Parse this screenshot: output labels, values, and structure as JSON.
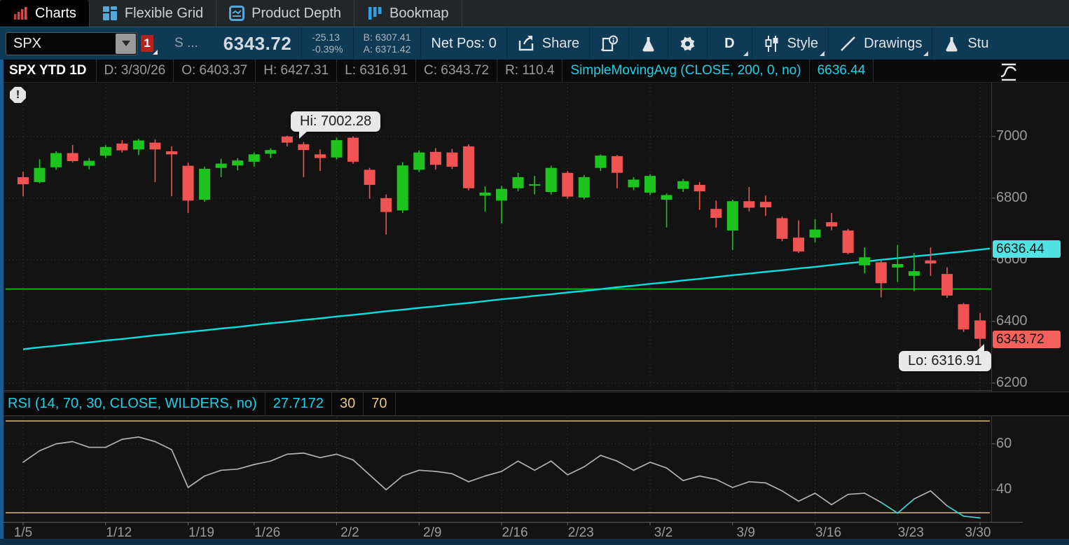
{
  "tabs": [
    {
      "label": "Charts",
      "active": true
    },
    {
      "label": "Flexible Grid",
      "active": false
    },
    {
      "label": "Product Depth",
      "active": false
    },
    {
      "label": "Bookmap",
      "active": false
    }
  ],
  "toolbar": {
    "symbol": "SPX",
    "badge": "1",
    "s_label": "S ...",
    "price": "6343.72",
    "change": "-25.13",
    "change_pct": "-0.39%",
    "bid": "B: 6307.41",
    "ask": "A: 6371.42",
    "net_pos": "Net Pos: 0",
    "share_label": "Share",
    "timeframe": "D",
    "style_label": "Style",
    "drawings_label": "Drawings",
    "studies_label": "Stu"
  },
  "chart_header": {
    "title": "SPX YTD 1D",
    "fields": [
      "D: 3/30/26",
      "O: 6403.37",
      "H: 6427.31",
      "L: 6316.91",
      "C: 6343.72",
      "R: 110.4"
    ],
    "study": "SimpleMovingAvg (CLOSE, 200, 0, no)",
    "study_value": "6636.44"
  },
  "rsi_header": {
    "label": "RSI (14, 70, 30, CLOSE, WILDERS, no)",
    "value": "27.7172",
    "oversold": "30",
    "overbought": "70"
  },
  "annotations": {
    "hi_label": "Hi: 7002.28",
    "lo_label": "Lo: 6316.91",
    "sma_badge": "6636.44",
    "last_badge": "6343.72"
  },
  "colors": {
    "candle_up": "#1ec41e",
    "candle_down": "#f15353",
    "sma_line": "#00dede",
    "level_line": "#00b50c",
    "rsi_line": "#b2b2b2",
    "rsi_oversold_line": "#3fd4d4",
    "rsi_band": "#c8b078",
    "grid": "#3e3e3e",
    "axis_text": "#989898",
    "badge_sma": "#4fe3e3",
    "badge_last": "#f4605c"
  },
  "chart_data": {
    "type": "candlestick",
    "title": "SPX YTD 1D",
    "price_axis": {
      "ticks": [
        7000,
        6800,
        6600,
        6400,
        6200
      ],
      "view_top": 7170,
      "view_bottom": 6177
    },
    "level_line_price": 6505,
    "hi": {
      "index": 16,
      "value": 7002.28
    },
    "lo": {
      "index": 58,
      "value": 6316.91
    },
    "sma_name": "SimpleMovingAvg (CLOSE, 200, 0, no)",
    "sma_last": 6636.44,
    "x_ticks": [
      {
        "index": 0,
        "label": "1/5"
      },
      {
        "index": 5,
        "label": "1/12"
      },
      {
        "index": 10,
        "label": "1/19"
      },
      {
        "index": 14,
        "label": "1/26"
      },
      {
        "index": 19,
        "label": "2/2"
      },
      {
        "index": 24,
        "label": "2/9"
      },
      {
        "index": 29,
        "label": "2/16"
      },
      {
        "index": 33,
        "label": "2/23"
      },
      {
        "index": 38,
        "label": "3/2"
      },
      {
        "index": 43,
        "label": "3/9"
      },
      {
        "index": 48,
        "label": "3/16"
      },
      {
        "index": 53,
        "label": "3/23"
      },
      {
        "index": 58,
        "label": "3/30"
      }
    ],
    "candles": [
      [
        6868,
        6886,
        6806,
        6845
      ],
      [
        6852,
        6926,
        6848,
        6898
      ],
      [
        6900,
        6952,
        6892,
        6946
      ],
      [
        6946,
        6972,
        6916,
        6920
      ],
      [
        6905,
        6930,
        6893,
        6921
      ],
      [
        6938,
        6972,
        6930,
        6966
      ],
      [
        6977,
        6988,
        6948,
        6955
      ],
      [
        6958,
        6992,
        6940,
        6987
      ],
      [
        6980,
        6990,
        6852,
        6958
      ],
      [
        6952,
        6968,
        6806,
        6942
      ],
      [
        6905,
        6915,
        6752,
        6792
      ],
      [
        6795,
        6902,
        6788,
        6895
      ],
      [
        6898,
        6928,
        6868,
        6912
      ],
      [
        6906,
        6930,
        6890,
        6922
      ],
      [
        6918,
        6948,
        6902,
        6942
      ],
      [
        6944,
        6962,
        6930,
        6956
      ],
      [
        7000,
        7002.28,
        6968,
        6980
      ],
      [
        6975,
        6982,
        6868,
        6956
      ],
      [
        6942,
        6958,
        6888,
        6930
      ],
      [
        6932,
        6996,
        6925,
        6988
      ],
      [
        6996,
        7000,
        6912,
        6918
      ],
      [
        6892,
        6898,
        6798,
        6843
      ],
      [
        6800,
        6812,
        6682,
        6755
      ],
      [
        6760,
        6916,
        6752,
        6906
      ],
      [
        6892,
        6955,
        6885,
        6948
      ],
      [
        6950,
        6962,
        6892,
        6908
      ],
      [
        6948,
        6960,
        6895,
        6902
      ],
      [
        6968,
        6975,
        6825,
        6832
      ],
      [
        6808,
        6838,
        6756,
        6818
      ],
      [
        6792,
        6840,
        6718,
        6830
      ],
      [
        6832,
        6882,
        6822,
        6868
      ],
      [
        6842,
        6872,
        6812,
        6845
      ],
      [
        6820,
        6905,
        6812,
        6898
      ],
      [
        6882,
        6888,
        6798,
        6805
      ],
      [
        6802,
        6875,
        6796,
        6868
      ],
      [
        6898,
        6942,
        6888,
        6938
      ],
      [
        6936,
        6940,
        6832,
        6882
      ],
      [
        6835,
        6868,
        6826,
        6860
      ],
      [
        6818,
        6878,
        6810,
        6872
      ],
      [
        6795,
        6815,
        6705,
        6810
      ],
      [
        6830,
        6862,
        6820,
        6855
      ],
      [
        6843,
        6852,
        6762,
        6822
      ],
      [
        6765,
        6792,
        6705,
        6736
      ],
      [
        6695,
        6795,
        6632,
        6790
      ],
      [
        6790,
        6836,
        6757,
        6769
      ],
      [
        6788,
        6808,
        6742,
        6770
      ],
      [
        6735,
        6740,
        6660,
        6668
      ],
      [
        6672,
        6728,
        6622,
        6627
      ],
      [
        6672,
        6732,
        6656,
        6698
      ],
      [
        6722,
        6752,
        6696,
        6708
      ],
      [
        6695,
        6700,
        6618,
        6622
      ],
      [
        6582,
        6640,
        6556,
        6608
      ],
      [
        6592,
        6598,
        6478,
        6524
      ],
      [
        6575,
        6648,
        6528,
        6586
      ],
      [
        6548,
        6622,
        6498,
        6563
      ],
      [
        6598,
        6640,
        6548,
        6588
      ],
      [
        6554,
        6576,
        6477,
        6484
      ],
      [
        6456,
        6460,
        6366,
        6374
      ],
      [
        6403.37,
        6427.31,
        6316.91,
        6343.72
      ]
    ],
    "sma": [
      6310,
      6316,
      6321,
      6327,
      6332,
      6338,
      6343,
      6349,
      6355,
      6360,
      6366,
      6371,
      6377,
      6382,
      6388,
      6394,
      6399,
      6405,
      6410,
      6416,
      6421,
      6427,
      6433,
      6438,
      6444,
      6449,
      6455,
      6460,
      6466,
      6472,
      6477,
      6483,
      6488,
      6494,
      6499,
      6505,
      6511,
      6516,
      6522,
      6527,
      6533,
      6538,
      6544,
      6550,
      6555,
      6561,
      6566,
      6572,
      6577,
      6583,
      6589,
      6594,
      6600,
      6605,
      6611,
      6616,
      6622,
      6627,
      6633
    ],
    "rsi": {
      "name": "RSI (14, 70, 30, CLOSE, WILDERS, no)",
      "last": 27.7172,
      "overbought": 70,
      "oversold": 30,
      "ticks": [
        60,
        40
      ],
      "view_top": 71.8,
      "view_bottom": 26.0,
      "values": [
        52,
        57,
        60,
        61,
        58.5,
        58.5,
        62,
        63,
        61,
        57.5,
        41,
        46,
        48.5,
        49,
        51,
        52.5,
        55.5,
        56,
        54,
        55.5,
        53,
        46.5,
        40,
        46,
        48.5,
        48,
        47,
        43.5,
        46,
        48,
        52.5,
        48.5,
        52.5,
        46.5,
        50,
        55,
        52.5,
        48.5,
        52,
        49.5,
        44,
        46,
        44.5,
        41,
        43.5,
        43,
        39.5,
        35,
        38.5,
        33.5,
        38,
        38.5,
        34.5,
        29.8,
        36,
        39.5,
        33,
        28.5,
        27.72
      ]
    }
  }
}
